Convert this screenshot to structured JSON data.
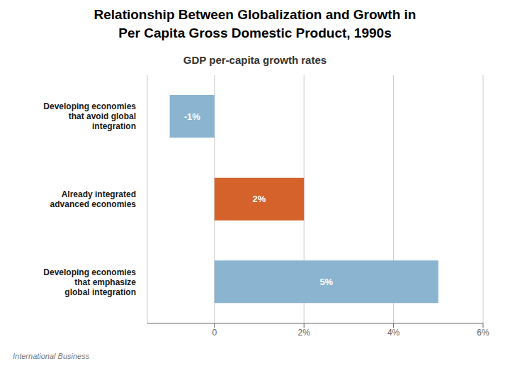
{
  "chart_data": {
    "type": "bar",
    "orientation": "horizontal",
    "title": "Relationship Between Globalization and Growth in\nPer Capita Gross Domestic Product, 1990s",
    "subtitle": "GDP per-capita growth rates",
    "annotations": [
      "International Business"
    ],
    "categories": [
      "Developing economies\nthat avoid global\nintegration",
      "Already integrated\nadvanced economies",
      "Developing economies\nthat emphasize\nglobal integration"
    ],
    "values": [
      -1,
      2,
      5
    ],
    "value_labels": [
      "-1%",
      "2%",
      "5%"
    ],
    "data_labels": true,
    "colors": [
      "#8ab4d0",
      "#d4622a",
      "#8ab4d0"
    ],
    "xlim": [
      -1.5,
      6
    ],
    "xticks": [
      0,
      {
        "value": 2,
        "label": "2%"
      },
      {
        "value": 4,
        "label": "4%"
      },
      {
        "value": 6,
        "label": "6%"
      }
    ],
    "grid": true
  }
}
